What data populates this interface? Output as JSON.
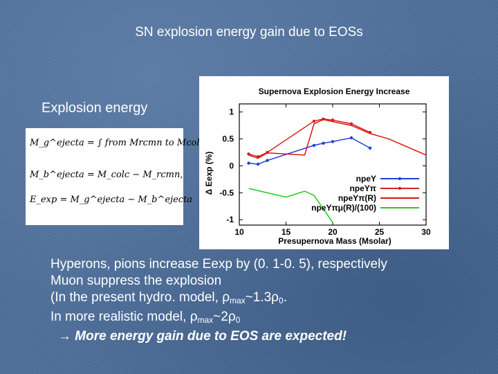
{
  "slide": {
    "title": "SN explosion energy gain due to EOSs",
    "subheading": "Explosion energy",
    "formulas": [
      "M_g^ejecta = ∫ from Mrcmn to Mcolc (dm_g/dm_b) dm_b,",
      "M_b^ejecta = M_colc − M_rcmn,",
      "E_exp = M_g^ejecta − M_b^ejecta"
    ],
    "bullets": [
      "Hyperons, pions increase Eexp by (0. 1-0. 5), respectively",
      "Muon suppress the explosion",
      " (In the present hydro. model, ",
      " In more realistic model, "
    ],
    "conclusion": "More energy gain due to EOS are expected!",
    "arrow_symbol": "→"
  },
  "chart_data": {
    "type": "line",
    "title": "Supernova Explosion Energy Increase",
    "xlabel": "Presupernova Mass (Msolar)",
    "ylabel": "Δ Eexp (%)",
    "xlim": [
      10,
      30
    ],
    "ylim": [
      -1.1,
      1.15
    ],
    "xticks": [
      10,
      15,
      20,
      25,
      30
    ],
    "yticks": [
      1,
      0.5,
      0,
      -0.5,
      -1
    ],
    "legend_position": "bottom-right",
    "series": [
      {
        "name": "npeY",
        "color": "#1f3fd8",
        "x": [
          11,
          12,
          13,
          18,
          19,
          20,
          22,
          24
        ],
        "y": [
          0.05,
          0.03,
          0.1,
          0.38,
          0.42,
          0.45,
          0.52,
          0.33
        ]
      },
      {
        "name": "npeYπ",
        "color": "#d81f1f",
        "x": [
          11,
          12,
          13,
          18,
          19,
          20,
          22,
          24
        ],
        "y": [
          0.22,
          0.17,
          0.25,
          0.83,
          0.87,
          0.85,
          0.78,
          0.62
        ]
      },
      {
        "name": "npeYπ(R)",
        "color": "#e01010",
        "x": [
          11,
          12,
          13,
          17,
          18,
          19,
          20,
          22,
          24,
          25,
          26,
          28,
          30
        ],
        "y": [
          0.2,
          0.14,
          0.24,
          0.2,
          0.78,
          0.86,
          0.82,
          0.75,
          0.6,
          0.55,
          0.5,
          0.35,
          0.2
        ]
      },
      {
        "name": "npeYπμ(R)/(100)",
        "color": "#22cc22",
        "x": [
          11,
          13,
          15,
          17,
          18,
          19,
          20
        ],
        "y": [
          -0.42,
          -0.5,
          -0.58,
          -0.47,
          -0.55,
          -0.8,
          -1.05
        ]
      }
    ]
  }
}
